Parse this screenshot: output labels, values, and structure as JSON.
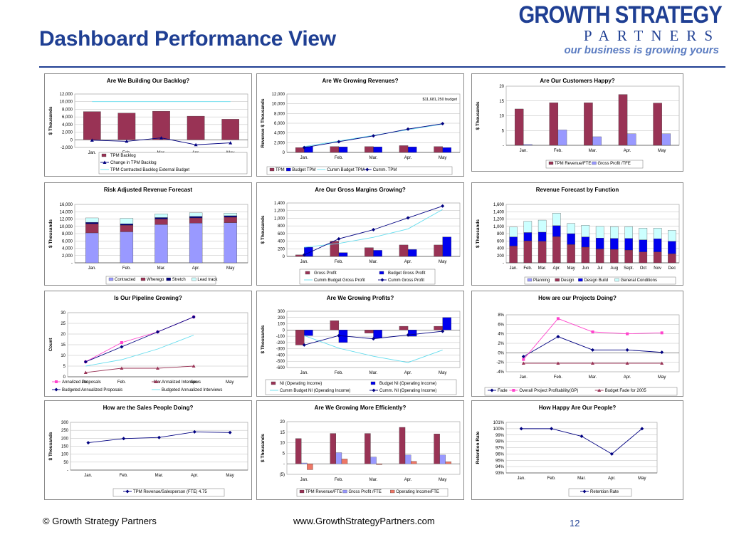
{
  "header": {
    "title": "Dashboard Performance View",
    "logo_line1": "GROWTH STRATEGY",
    "logo_line2": "PARTNERS",
    "logo_tagline": "our business is growing yours"
  },
  "footer": {
    "copyright": "© Growth Strategy Partners",
    "url": "www.GrowthStrategyPartners.com",
    "page": "12"
  },
  "colors": {
    "maroon": "#993355",
    "blue": "#0000ee",
    "lavender": "#9999ff",
    "cyan": "#66ddee",
    "navy": "#000080",
    "magenta": "#ff44cc",
    "lightcyan": "#ccffff",
    "pink": "#ee7766",
    "red": "#cc3333",
    "yellow": "#ffee88",
    "white": "#ffffff"
  },
  "chart_data": [
    {
      "type": "bar",
      "title": "Are We Building Our Backlog?",
      "ylabel": "$ Thousands",
      "categories": [
        "Jan.",
        "Feb.",
        "Mar.",
        "Apr.",
        "May"
      ],
      "ylim": [
        -2000,
        12000
      ],
      "yticks": [
        "-2,000",
        "0",
        "2,000",
        "4,000",
        "6,000",
        "8,000",
        "10,000",
        "12,000"
      ],
      "yticks_values": [
        -2000,
        0,
        2000,
        4000,
        6000,
        8000,
        10000,
        12000
      ],
      "series": [
        {
          "name": "TPM Backlog",
          "kind": "bar",
          "color": "#993355",
          "values": [
            7400,
            7000,
            7500,
            6200,
            5400
          ]
        },
        {
          "name": "Change in TPM Backlog",
          "kind": "line",
          "color": "#000080",
          "marker": "triangle",
          "values": [
            -100,
            -400,
            500,
            -1300,
            -800
          ]
        },
        {
          "name": "TPM Contracted Backlog External Budget",
          "kind": "line",
          "color": "#66ddee",
          "marker": "none",
          "values": [
            10000,
            10000,
            10000,
            10000,
            10000
          ]
        }
      ],
      "legend": "bottom"
    },
    {
      "type": "bar",
      "title": "Are We Growing Revenues?",
      "ylabel": "Revenue $ Thousands",
      "categories": [
        "Jan.",
        "Feb.",
        "Mar.",
        "Apr.",
        "May"
      ],
      "ylim": [
        0,
        12000
      ],
      "yticks": [
        "0",
        "2,000",
        "4,000",
        "6,000",
        "8,000",
        "10,000",
        "12,000"
      ],
      "yticks_values": [
        0,
        2000,
        4000,
        6000,
        8000,
        10000,
        12000
      ],
      "annotation": "$11,681,250 budget",
      "series": [
        {
          "name": "TPM",
          "kind": "bar",
          "color": "#993355",
          "values": [
            1000,
            1200,
            1200,
            1400,
            1200
          ]
        },
        {
          "name": "Budget TPM",
          "kind": "bar",
          "color": "#0000ee",
          "values": [
            1200,
            1150,
            1150,
            1150,
            1000
          ]
        },
        {
          "name": "Cumm Budget TPM",
          "kind": "line",
          "color": "#66ddee",
          "marker": "none",
          "values": [
            1200,
            2350,
            3500,
            4650,
            5800
          ]
        },
        {
          "name": "Cumm. TPM",
          "kind": "line",
          "color": "#000080",
          "marker": "diamond",
          "values": [
            1000,
            2200,
            3400,
            4800,
            5900
          ]
        }
      ],
      "legend": "bottom"
    },
    {
      "type": "bar",
      "title": "Are Our Customers Happy?",
      "ylabel": "$ Thousands",
      "categories": [
        "Jan.",
        "Feb.",
        "Mar.",
        "Apr.",
        "May"
      ],
      "ylim": [
        0,
        20
      ],
      "yticks": [
        "-",
        "5",
        "10",
        "15",
        "20"
      ],
      "yticks_values": [
        0,
        5,
        10,
        15,
        20
      ],
      "series": [
        {
          "name": "TPM Revenue/FTE",
          "kind": "bar",
          "color": "#993355",
          "values": [
            12.3,
            14.4,
            14.4,
            17.2,
            14.3
          ]
        },
        {
          "name": "Gross Profit /TFE",
          "kind": "bar",
          "color": "#9999ff",
          "values": [
            0.3,
            5.2,
            2.9,
            3.9,
            3.9
          ]
        }
      ],
      "legend": "bottom"
    },
    {
      "type": "bar",
      "stacked": true,
      "title": "Risk Adjusted Revenue Forecast",
      "ylabel": "$ Thousands",
      "categories": [
        "Jan.",
        "Feb.",
        "Mar.",
        "Apr.",
        "May"
      ],
      "ylim": [
        0,
        16000
      ],
      "yticks": [
        "-",
        "2,000",
        "4,000",
        "6,000",
        "8,000",
        "10,000",
        "12,000",
        "14,000",
        "16,000"
      ],
      "yticks_values": [
        0,
        2000,
        4000,
        6000,
        8000,
        10000,
        12000,
        14000,
        16000
      ],
      "series": [
        {
          "name": "Contracted",
          "kind": "bar",
          "color": "#9999ff",
          "values": [
            8200,
            8500,
            10500,
            10900,
            11000
          ]
        },
        {
          "name": "Wherego",
          "kind": "bar",
          "color": "#993355",
          "values": [
            2500,
            1800,
            1500,
            1400,
            1500
          ]
        },
        {
          "name": "Stretch",
          "kind": "bar",
          "color": "#000080",
          "values": [
            400,
            400,
            400,
            400,
            400
          ]
        },
        {
          "name": "Lead track",
          "kind": "bar",
          "color": "#ccffff",
          "values": [
            1200,
            1500,
            1000,
            1000,
            700
          ]
        }
      ],
      "legend": "bottom"
    },
    {
      "type": "bar",
      "title": "Are Our Gross Margins Growing?",
      "ylabel": "$ Thousands",
      "categories": [
        "Jan.",
        "Feb.",
        "Mar.",
        "Apr.",
        "May"
      ],
      "ylim": [
        0,
        1400
      ],
      "yticks": [
        "0",
        "200",
        "400",
        "600",
        "800",
        "1,000",
        "1,200",
        "1,400"
      ],
      "yticks_values": [
        0,
        200,
        400,
        600,
        800,
        1000,
        1200,
        1400
      ],
      "series": [
        {
          "name": "Gross Profit",
          "kind": "bar",
          "color": "#993355",
          "values": [
            40,
            400,
            230,
            300,
            300
          ]
        },
        {
          "name": "Budget Gross Profit",
          "kind": "bar",
          "color": "#0000ee",
          "values": [
            240,
            100,
            160,
            180,
            510
          ]
        },
        {
          "name": "Cumm Budget Gross Profit",
          "kind": "line",
          "color": "#66ddee",
          "marker": "none",
          "values": [
            240,
            340,
            500,
            720,
            1230
          ]
        },
        {
          "name": "Cumm Gross Profit",
          "kind": "line",
          "color": "#000080",
          "marker": "diamond",
          "values": [
            40,
            460,
            700,
            1010,
            1320
          ]
        }
      ],
      "legend": "bottom"
    },
    {
      "type": "bar",
      "stacked": true,
      "title": "Revenue Forecast by Function",
      "ylabel": "$ Thousands",
      "categories": [
        "Jan.",
        "Feb.",
        "Mar.",
        "Apr.",
        "May",
        "Jun",
        "Jul",
        "Aug",
        "Sept.",
        "Oct",
        "Nov",
        "Dec"
      ],
      "ylim": [
        0,
        1600
      ],
      "yticks": [
        "-",
        "200",
        "400",
        "600",
        "800",
        "1,000",
        "1,200",
        "1,400",
        "1,600"
      ],
      "yticks_values": [
        0,
        200,
        400,
        600,
        800,
        1000,
        1200,
        1400,
        1600
      ],
      "series": [
        {
          "name": "Planning",
          "kind": "bar",
          "color": "#9999ff",
          "values": [
            0,
            0,
            0,
            0,
            0,
            0,
            0,
            0,
            0,
            0,
            0,
            0
          ]
        },
        {
          "name": "Design",
          "kind": "bar",
          "color": "#993355",
          "values": [
            460,
            600,
            590,
            720,
            500,
            430,
            380,
            370,
            350,
            300,
            300,
            250
          ]
        },
        {
          "name": "Design Build",
          "kind": "bar",
          "color": "#0000ee",
          "values": [
            250,
            230,
            250,
            300,
            300,
            280,
            300,
            300,
            320,
            330,
            360,
            340
          ]
        },
        {
          "name": "General Conditions",
          "kind": "bar",
          "color": "#ccffff",
          "values": [
            270,
            310,
            330,
            340,
            280,
            320,
            320,
            320,
            320,
            320,
            290,
            300
          ]
        }
      ],
      "legend": "bottom"
    },
    {
      "type": "line",
      "title": "Is Our Pipeline Growing?",
      "ylabel": "Count",
      "categories": [
        "Jan.",
        "Feb.",
        "Mar.",
        "Apr.",
        "May"
      ],
      "ylim": [
        0,
        30
      ],
      "yticks": [
        "0",
        "5",
        "10",
        "15",
        "20",
        "25",
        "30"
      ],
      "yticks_values": [
        0,
        5,
        10,
        15,
        20,
        25,
        30
      ],
      "series": [
        {
          "name": "Annalized Proposals",
          "kind": "line",
          "color": "#ff44cc",
          "marker": "square",
          "values": [
            7,
            16,
            21,
            28,
            null
          ]
        },
        {
          "name": "Annalized Interviews",
          "kind": "line",
          "color": "#993355",
          "marker": "triangle",
          "values": [
            2,
            4,
            4,
            5,
            null
          ]
        },
        {
          "name": "Budgeted Annualized Proposals",
          "kind": "line",
          "color": "#000080",
          "marker": "diamond",
          "values": [
            7,
            14,
            21,
            28,
            null
          ]
        },
        {
          "name": "Budgeted Annualized Interviews",
          "kind": "line",
          "color": "#66ddee",
          "marker": "none",
          "values": [
            5,
            8,
            13,
            19.5,
            null
          ]
        }
      ],
      "legend": "bottom"
    },
    {
      "type": "bar",
      "title": "Are We Growing Profits?",
      "ylabel": "$ Thousands",
      "categories": [
        "Jan.",
        "Feb.",
        "Mar.",
        "Apr.",
        "May"
      ],
      "ylim": [
        -600,
        300
      ],
      "yticks": [
        "-600",
        "-500",
        "-400",
        "-300",
        "-200",
        "-100",
        "0",
        "100",
        "200",
        "300"
      ],
      "yticks_values": [
        -600,
        -500,
        -400,
        -300,
        -200,
        -100,
        0,
        100,
        200,
        300
      ],
      "series": [
        {
          "name": "NI (Operating Income)",
          "kind": "bar",
          "color": "#993355",
          "values": [
            -240,
            150,
            -50,
            60,
            60
          ]
        },
        {
          "name": "Budget NI (Operating Income)",
          "kind": "bar",
          "color": "#0000ee",
          "values": [
            -90,
            -200,
            -130,
            -100,
            200
          ]
        },
        {
          "name": "Cumm Budget NI (Operating Income)",
          "kind": "line",
          "color": "#66ddee",
          "marker": "none",
          "values": [
            -90,
            -290,
            -420,
            -520,
            -320
          ]
        },
        {
          "name": "Cumm. NI (Operating Income)",
          "kind": "line",
          "color": "#000080",
          "marker": "diamond",
          "values": [
            -240,
            -90,
            -140,
            -80,
            -20
          ]
        }
      ],
      "legend": "bottom"
    },
    {
      "type": "line",
      "title": "How are our Projects Doing?",
      "ylabel": "",
      "categories": [
        "Jan.",
        "Feb.",
        "Mar.",
        "Apr.",
        "May"
      ],
      "ylim": [
        -4,
        8
      ],
      "yticks": [
        "-4%",
        "-2%",
        "0%",
        "2%",
        "4%",
        "6%",
        "8%"
      ],
      "yticks_values": [
        -4,
        -2,
        0,
        2,
        4,
        6,
        8
      ],
      "series": [
        {
          "name": "Fade",
          "kind": "line",
          "color": "#000080",
          "marker": "diamond",
          "values": [
            -0.8,
            3.4,
            0.6,
            0.6,
            0.1
          ]
        },
        {
          "name": "Overall Project Profitability(GP)",
          "kind": "line",
          "color": "#ff44cc",
          "marker": "square",
          "values": [
            -1.4,
            7.2,
            4.4,
            4.0,
            4.2
          ]
        },
        {
          "name": "Budget Fade for 2005",
          "kind": "line",
          "color": "#993355",
          "marker": "triangle",
          "values": [
            -2.2,
            -2.2,
            -2.2,
            -2.2,
            -2.2
          ]
        }
      ],
      "legend": "bottom"
    },
    {
      "type": "line",
      "title": "How are the Sales People Doing?",
      "ylabel": "$ Thousands",
      "categories": [
        "Jan.",
        "Feb.",
        "Mar.",
        "Apr.",
        "May"
      ],
      "ylim": [
        0,
        300
      ],
      "yticks": [
        "-",
        "50",
        "100",
        "150",
        "200",
        "250",
        "300"
      ],
      "yticks_values": [
        0,
        50,
        100,
        150,
        200,
        250,
        300
      ],
      "series": [
        {
          "name": "TPM Revenue/Salesperson (FTE) 4.75",
          "kind": "line",
          "color": "#000080",
          "marker": "diamond",
          "values": [
            172,
            198,
            205,
            240,
            236
          ]
        }
      ],
      "legend": "bottom"
    },
    {
      "type": "bar",
      "title": "Are We Growing More Efficiently?",
      "ylabel": "$ Thousands",
      "categories": [
        "Jan.",
        "Feb.",
        "Mar.",
        "Apr.",
        "May"
      ],
      "ylim": [
        -5,
        20
      ],
      "yticks": [
        "(5)",
        "-",
        "5",
        "10",
        "15",
        "20"
      ],
      "yticks_values": [
        -5,
        0,
        5,
        10,
        15,
        20
      ],
      "series": [
        {
          "name": "TPM Revenue/FTE",
          "kind": "bar",
          "color": "#993355",
          "values": [
            12.0,
            14.4,
            14.4,
            17.3,
            14.2
          ]
        },
        {
          "name": "Gross Profit /FTE",
          "kind": "bar",
          "color": "#9999ff",
          "values": [
            0.4,
            5.3,
            3.2,
            4.2,
            4.2
          ]
        },
        {
          "name": "Operating Income/FTE",
          "kind": "bar",
          "color": "#ee7766",
          "values": [
            -2.8,
            2.3,
            -0.4,
            1.2,
            1.0
          ]
        }
      ],
      "legend": "bottom"
    },
    {
      "type": "line",
      "title": "How Happy Are Our People?",
      "ylabel": "Retention Rate",
      "categories": [
        "Jan.",
        "Feb.",
        "Mar.",
        "Apr.",
        "May"
      ],
      "ylim": [
        93,
        101
      ],
      "yticks": [
        "93%",
        "94%",
        "95%",
        "96%",
        "97%",
        "98%",
        "99%",
        "100%",
        "101%"
      ],
      "yticks_values": [
        93,
        94,
        95,
        96,
        97,
        98,
        99,
        100,
        101
      ],
      "series": [
        {
          "name": "Retention Rate",
          "kind": "line",
          "color": "#000080",
          "marker": "diamond",
          "values": [
            100,
            100,
            98.8,
            96.0,
            100
          ]
        }
      ],
      "legend": "bottom"
    }
  ]
}
